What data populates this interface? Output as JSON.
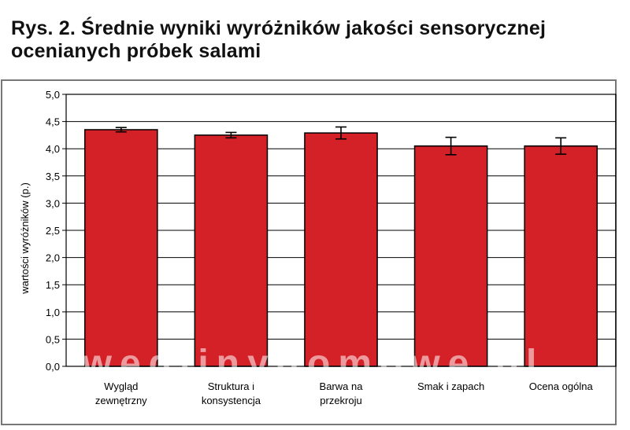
{
  "title": "Rys. 2. Średnie wyniki wyróżników jakości sensorycznej ocenianych próbek salami",
  "watermark": "wedlinydomowe.pl",
  "chart_data": {
    "type": "bar",
    "categories": [
      [
        "Wygląd",
        "zewnętrzny"
      ],
      [
        "Struktura i",
        "konsystencja"
      ],
      [
        "Barwa na",
        "przekroju"
      ],
      [
        "Smak i zapach"
      ],
      [
        "Ocena ogólna"
      ]
    ],
    "values": [
      4.35,
      4.25,
      4.29,
      4.05,
      4.05
    ],
    "error": [
      0.04,
      0.05,
      0.11,
      0.16,
      0.15
    ],
    "xlabel": "",
    "ylabel": "wartości wyróżników (p.)",
    "ylim": [
      0,
      5
    ],
    "yticks": [
      "0,0",
      "0,5",
      "1,0",
      "1,5",
      "2,0",
      "2,5",
      "3,0",
      "3,5",
      "4,0",
      "4,5",
      "5,0"
    ],
    "grid": true,
    "colors": {
      "bar": "#d42027",
      "bar_edge": "#000000",
      "plot_bg": "#ffffff",
      "grid": "#000000",
      "frame_bg": "#ffffff",
      "frame_border": "#777777"
    }
  }
}
